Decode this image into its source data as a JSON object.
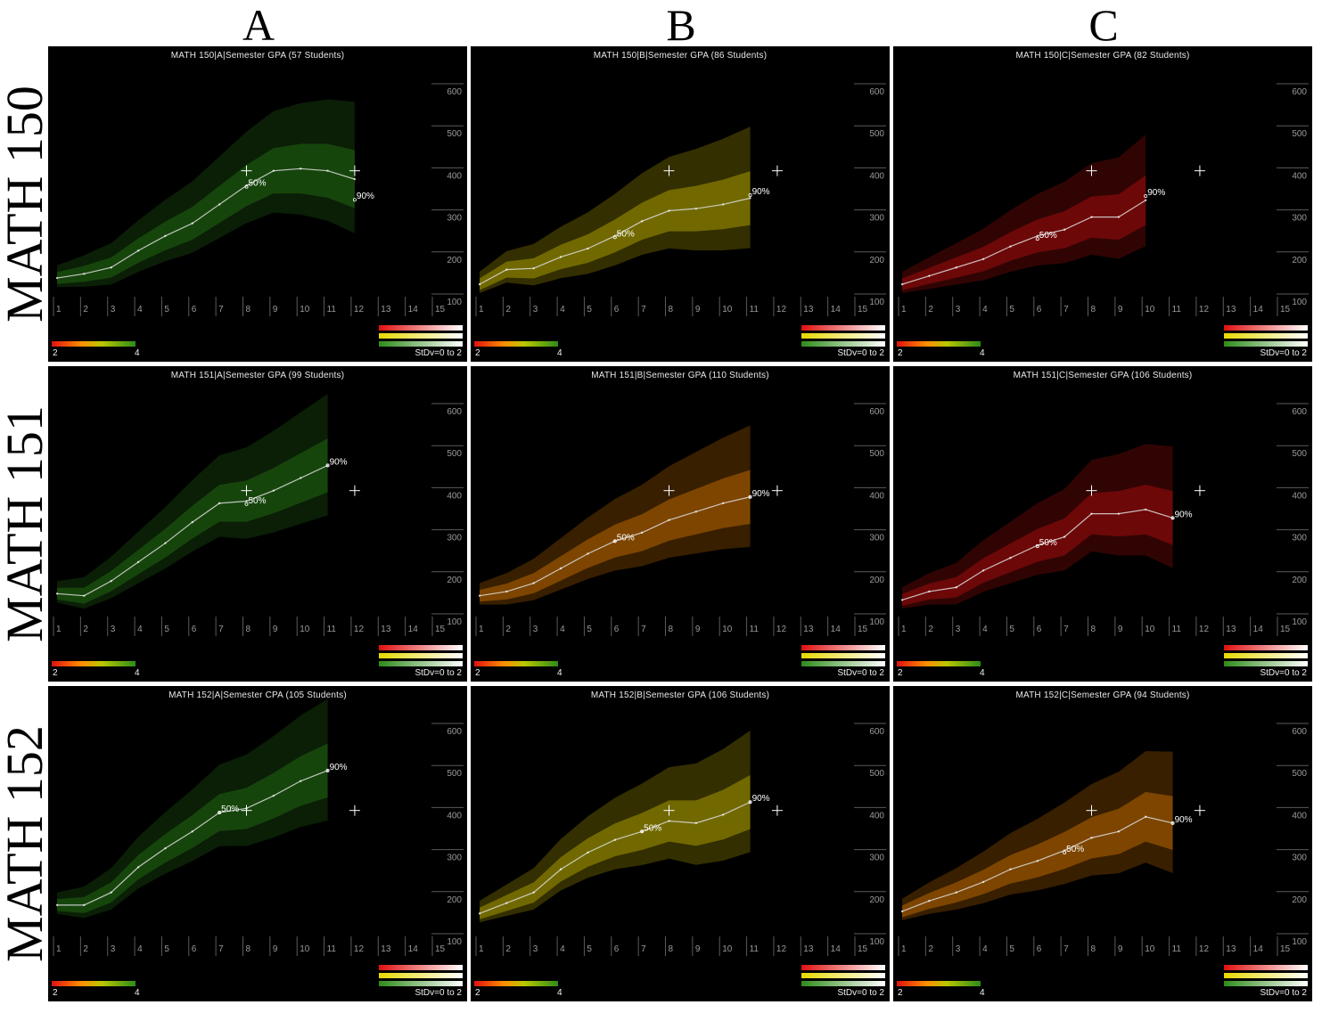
{
  "columns": [
    "A",
    "B",
    "C"
  ],
  "rows": [
    "MATH 150",
    "MATH 151",
    "MATH 152"
  ],
  "colors": {
    "green": "#2e8b1a",
    "yellow": "#e6d800",
    "red": "#e01010",
    "orange": "#ff8c00",
    "line": "#dddddd"
  },
  "chart_data": [
    {
      "type": "line",
      "title": "MATH 150|A|Semester GPA (57 Students)",
      "x_ticks": [
        "1",
        "2",
        "3",
        "4",
        "5",
        "6",
        "7",
        "8",
        "9",
        "10",
        "11",
        "12",
        "13",
        "14",
        "15"
      ],
      "y_ticks": [
        "100",
        "200",
        "300",
        "400",
        "500",
        "600"
      ],
      "ylim": [
        100,
        600
      ],
      "xlim": [
        1,
        15
      ],
      "color_scale": {
        "min_label": "2",
        "max_label": "4"
      },
      "stdv_label": "StDv=0 to 2",
      "dominant_color": "green",
      "markers": [
        {
          "x": 8,
          "y": 410
        },
        {
          "x": 12,
          "y": 410
        }
      ],
      "annotations": [
        {
          "text": "50%",
          "x": 8,
          "y": 372
        },
        {
          "x": 12,
          "y": 341,
          "text": "90%"
        }
      ],
      "x": [
        1,
        2,
        3,
        4,
        5,
        6,
        7,
        8,
        9,
        10,
        11,
        12
      ],
      "values": [
        155,
        165,
        180,
        220,
        255,
        285,
        330,
        375,
        410,
        415,
        410,
        390
      ]
    },
    {
      "type": "line",
      "title": "MATH 150|B|Semester GPA (86 Students)",
      "x_ticks": [
        "1",
        "2",
        "3",
        "4",
        "5",
        "6",
        "7",
        "8",
        "9",
        "10",
        "11",
        "12",
        "13",
        "14",
        "15"
      ],
      "y_ticks": [
        "100",
        "200",
        "300",
        "400",
        "500",
        "600"
      ],
      "ylim": [
        100,
        600
      ],
      "xlim": [
        1,
        15
      ],
      "color_scale": {
        "min_label": "2",
        "max_label": "4"
      },
      "stdv_label": "StDv=0 to 2",
      "dominant_color": "yellow",
      "markers": [
        {
          "x": 8,
          "y": 410
        },
        {
          "x": 12,
          "y": 410
        }
      ],
      "annotations": [
        {
          "text": "50%",
          "x": 6,
          "y": 252
        },
        {
          "text": "90%",
          "x": 11,
          "y": 352
        }
      ],
      "x": [
        1,
        2,
        3,
        4,
        5,
        6,
        7,
        8,
        9,
        10,
        11
      ],
      "values": [
        140,
        175,
        178,
        205,
        225,
        255,
        290,
        315,
        320,
        330,
        345
      ]
    },
    {
      "type": "line",
      "title": "MATH 150|C|Semester GPA (82 Students)",
      "x_ticks": [
        "1",
        "2",
        "3",
        "4",
        "5",
        "6",
        "7",
        "8",
        "9",
        "10",
        "11",
        "12",
        "13",
        "14",
        "15"
      ],
      "y_ticks": [
        "100",
        "200",
        "300",
        "400",
        "500",
        "600"
      ],
      "ylim": [
        100,
        600
      ],
      "xlim": [
        1,
        15
      ],
      "color_scale": {
        "min_label": "2",
        "max_label": "4"
      },
      "stdv_label": "StDv=0 to 2",
      "dominant_color": "red",
      "markers": [
        {
          "x": 8,
          "y": 410
        },
        {
          "x": 12,
          "y": 410
        }
      ],
      "annotations": [
        {
          "text": "50%",
          "x": 6,
          "y": 248
        },
        {
          "text": "90%",
          "x": 10,
          "y": 350
        }
      ],
      "x": [
        1,
        2,
        3,
        4,
        5,
        6,
        7,
        8,
        9,
        10
      ],
      "values": [
        140,
        160,
        180,
        200,
        230,
        255,
        270,
        300,
        300,
        340
      ]
    },
    {
      "type": "line",
      "title": "MATH 151|A|Semester GPA (99 Students)",
      "x_ticks": [
        "1",
        "2",
        "3",
        "4",
        "5",
        "6",
        "7",
        "8",
        "9",
        "10",
        "11",
        "12",
        "13",
        "14",
        "15"
      ],
      "y_ticks": [
        "100",
        "200",
        "300",
        "400",
        "500",
        "600"
      ],
      "ylim": [
        100,
        600
      ],
      "xlim": [
        1,
        15
      ],
      "color_scale": {
        "min_label": "2",
        "max_label": "4"
      },
      "stdv_label": "StDv=0 to 2",
      "dominant_color": "green",
      "markers": [
        {
          "x": 8,
          "y": 410
        },
        {
          "x": 12,
          "y": 410
        }
      ],
      "annotations": [
        {
          "text": "50%",
          "x": 8,
          "y": 378
        },
        {
          "text": "90%",
          "x": 11,
          "y": 470
        }
      ],
      "x": [
        1,
        2,
        3,
        4,
        5,
        6,
        7,
        8,
        9,
        10,
        11
      ],
      "values": [
        165,
        160,
        195,
        240,
        285,
        335,
        380,
        385,
        410,
        440,
        470
      ]
    },
    {
      "type": "line",
      "title": "MATH 151|B|Semester GPA (110 Students)",
      "x_ticks": [
        "1",
        "2",
        "3",
        "4",
        "5",
        "6",
        "7",
        "8",
        "9",
        "10",
        "11",
        "12",
        "13",
        "14",
        "15"
      ],
      "y_ticks": [
        "100",
        "200",
        "300",
        "400",
        "500",
        "600"
      ],
      "ylim": [
        100,
        600
      ],
      "xlim": [
        1,
        15
      ],
      "color_scale": {
        "min_label": "2",
        "max_label": "4"
      },
      "stdv_label": "StDv=0 to 2",
      "dominant_color": "orange",
      "markers": [
        {
          "x": 8,
          "y": 410
        },
        {
          "x": 12,
          "y": 410
        }
      ],
      "annotations": [
        {
          "text": "50%",
          "x": 6,
          "y": 290
        },
        {
          "text": "90%",
          "x": 11,
          "y": 395
        }
      ],
      "x": [
        1,
        2,
        3,
        4,
        5,
        6,
        7,
        8,
        9,
        10,
        11
      ],
      "values": [
        160,
        170,
        190,
        225,
        260,
        290,
        310,
        340,
        360,
        380,
        395
      ]
    },
    {
      "type": "line",
      "title": "MATH 151|C|Semester GPA (106 Students)",
      "x_ticks": [
        "1",
        "2",
        "3",
        "4",
        "5",
        "6",
        "7",
        "8",
        "9",
        "10",
        "11",
        "12",
        "13",
        "14",
        "15"
      ],
      "y_ticks": [
        "100",
        "200",
        "300",
        "400",
        "500",
        "600"
      ],
      "ylim": [
        100,
        600
      ],
      "xlim": [
        1,
        15
      ],
      "color_scale": {
        "min_label": "2",
        "max_label": "4"
      },
      "stdv_label": "StDv=0 to 2",
      "dominant_color": "red",
      "markers": [
        {
          "x": 8,
          "y": 410
        },
        {
          "x": 12,
          "y": 410
        }
      ],
      "annotations": [
        {
          "text": "50%",
          "x": 6,
          "y": 278
        },
        {
          "text": "90%",
          "x": 11,
          "y": 345
        }
      ],
      "x": [
        1,
        2,
        3,
        4,
        5,
        6,
        7,
        8,
        9,
        10,
        11
      ],
      "values": [
        150,
        170,
        180,
        220,
        250,
        280,
        300,
        355,
        355,
        365,
        345
      ]
    },
    {
      "type": "line",
      "title": "MATH 152|A|Semester CPA (105 Students)",
      "x_ticks": [
        "1",
        "2",
        "3",
        "4",
        "5",
        "6",
        "7",
        "8",
        "9",
        "10",
        "11",
        "12",
        "13",
        "14",
        "15"
      ],
      "y_ticks": [
        "100",
        "200",
        "300",
        "400",
        "500",
        "600"
      ],
      "ylim": [
        100,
        600
      ],
      "xlim": [
        1,
        15
      ],
      "color_scale": {
        "min_label": "2",
        "max_label": "4"
      },
      "stdv_label": "StDv=0 to 2",
      "dominant_color": "green",
      "markers": [
        {
          "x": 8,
          "y": 410
        },
        {
          "x": 12,
          "y": 410
        }
      ],
      "annotations": [
        {
          "text": "50%",
          "x": 7,
          "y": 405
        },
        {
          "text": "90%",
          "x": 11,
          "y": 505
        }
      ],
      "x": [
        1,
        2,
        3,
        4,
        5,
        6,
        7,
        8,
        9,
        10,
        11
      ],
      "values": [
        185,
        185,
        215,
        275,
        320,
        360,
        405,
        415,
        445,
        480,
        505
      ]
    },
    {
      "type": "line",
      "title": "MATH 152|B|Semester GPA (106 Students)",
      "x_ticks": [
        "1",
        "2",
        "3",
        "4",
        "5",
        "6",
        "7",
        "8",
        "9",
        "10",
        "11",
        "12",
        "13",
        "14",
        "15"
      ],
      "y_ticks": [
        "100",
        "200",
        "300",
        "400",
        "500",
        "600"
      ],
      "ylim": [
        100,
        600
      ],
      "xlim": [
        1,
        15
      ],
      "color_scale": {
        "min_label": "2",
        "max_label": "4"
      },
      "stdv_label": "StDv=0 to 2",
      "dominant_color": "yellow",
      "markers": [
        {
          "x": 8,
          "y": 410
        },
        {
          "x": 12,
          "y": 410
        }
      ],
      "annotations": [
        {
          "text": "50%",
          "x": 7,
          "y": 360
        },
        {
          "text": "90%",
          "x": 11,
          "y": 430
        }
      ],
      "x": [
        1,
        2,
        3,
        4,
        5,
        6,
        7,
        8,
        9,
        10,
        11
      ],
      "values": [
        165,
        190,
        215,
        270,
        310,
        340,
        360,
        385,
        380,
        400,
        430
      ]
    },
    {
      "type": "line",
      "title": "MATH 152|C|Semester GPA (94 Students)",
      "x_ticks": [
        "1",
        "2",
        "3",
        "4",
        "5",
        "6",
        "7",
        "8",
        "9",
        "10",
        "11",
        "12",
        "13",
        "14",
        "15"
      ],
      "y_ticks": [
        "100",
        "200",
        "300",
        "400",
        "500",
        "600"
      ],
      "ylim": [
        100,
        600
      ],
      "xlim": [
        1,
        15
      ],
      "color_scale": {
        "min_label": "2",
        "max_label": "4"
      },
      "stdv_label": "StDv=0 to 2",
      "dominant_color": "orange",
      "markers": [
        {
          "x": 8,
          "y": 410
        },
        {
          "x": 12,
          "y": 410
        }
      ],
      "annotations": [
        {
          "text": "50%",
          "x": 7,
          "y": 310
        },
        {
          "text": "90%",
          "x": 11,
          "y": 380
        }
      ],
      "x": [
        1,
        2,
        3,
        4,
        5,
        6,
        7,
        8,
        9,
        10,
        11
      ],
      "values": [
        170,
        195,
        215,
        240,
        270,
        290,
        315,
        345,
        360,
        395,
        380
      ]
    }
  ]
}
